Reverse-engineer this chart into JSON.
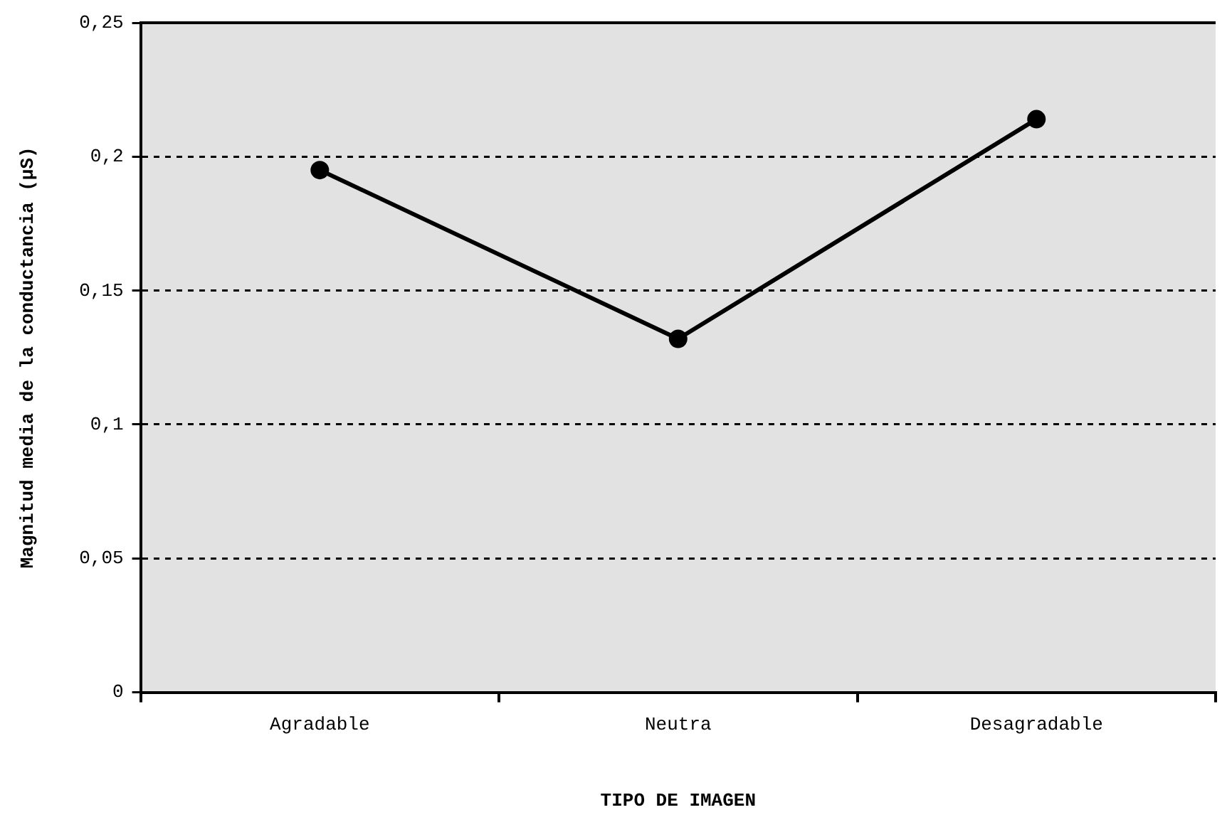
{
  "chart_data": {
    "type": "line",
    "xlabel": "TIPO DE IMAGEN",
    "ylabel": "Magnitud media de la conductancia (µS)",
    "categories": [
      "Agradable",
      "Neutra",
      "Desagradable"
    ],
    "series": [
      {
        "color": "#000000",
        "values": [
          0.195,
          0.132,
          0.214
        ]
      }
    ],
    "ylim": [
      0,
      0.25
    ],
    "yticks": [
      0,
      {
        "value": 0.05,
        "label": "0,05"
      },
      {
        "value": 0.1,
        "label": "0,1"
      },
      {
        "value": 0.15,
        "label": "0,15"
      },
      {
        "value": 0.2,
        "label": "0,2"
      },
      {
        "value": 0.25,
        "label": "0,25"
      }
    ],
    "grid": "y",
    "legend": false,
    "marker": "circle",
    "line_style": "solid"
  }
}
